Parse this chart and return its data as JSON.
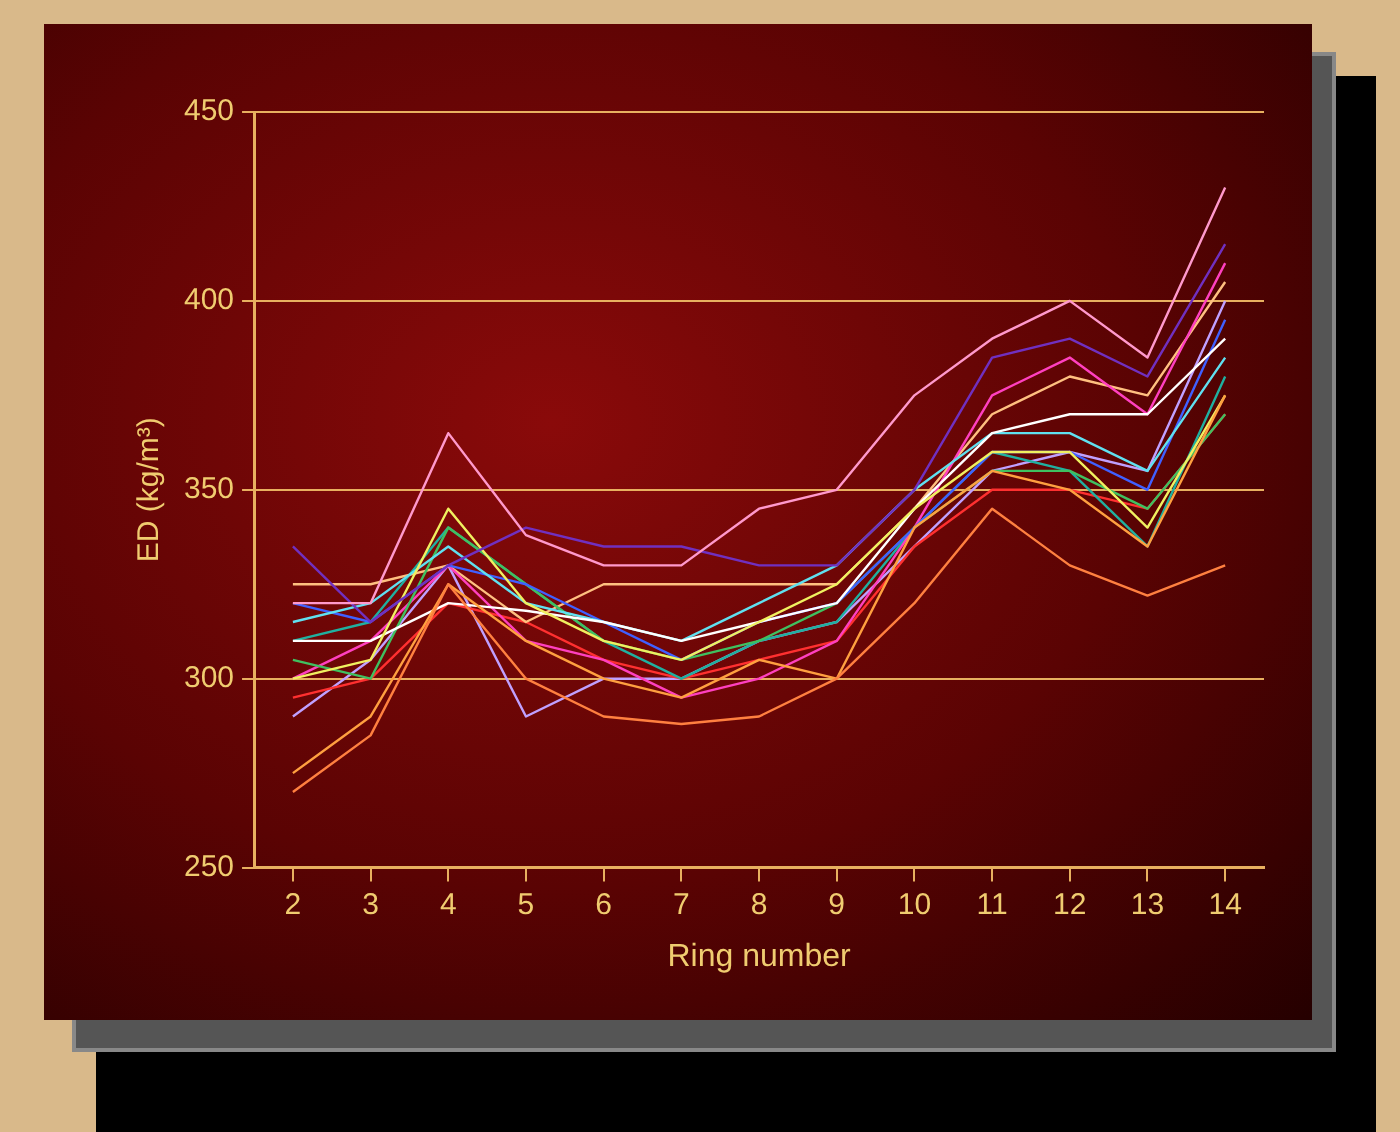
{
  "chart_data": {
    "type": "line",
    "xlabel": "Ring number",
    "ylabel": "ED (kg/m³)",
    "categories": [
      "2",
      "3",
      "4",
      "5",
      "6",
      "7",
      "8",
      "9",
      "10",
      "11",
      "12",
      "13",
      "14"
    ],
    "ylim": [
      250,
      450
    ],
    "yticks": [
      250,
      300,
      350,
      400,
      450
    ],
    "grid": "y",
    "legend": false,
    "marker": "none",
    "line_style": "solid",
    "series": [
      {
        "color": "#ff99cc",
        "values": [
          320,
          320,
          365,
          338,
          330,
          330,
          345,
          350,
          375,
          390,
          400,
          385,
          430
        ]
      },
      {
        "color": "#7030c0",
        "values": [
          335,
          315,
          330,
          340,
          335,
          335,
          330,
          330,
          350,
          385,
          390,
          380,
          415
        ]
      },
      {
        "color": "#ff8040",
        "values": [
          270,
          285,
          325,
          300,
          290,
          288,
          290,
          300,
          320,
          345,
          330,
          322,
          330
        ]
      },
      {
        "color": "#ffa040",
        "values": [
          275,
          290,
          325,
          310,
          300,
          295,
          305,
          300,
          340,
          355,
          350,
          335,
          375
        ]
      },
      {
        "color": "#f0f060",
        "values": [
          300,
          305,
          345,
          320,
          310,
          305,
          315,
          325,
          345,
          360,
          360,
          340,
          375
        ]
      },
      {
        "color": "#ffffff",
        "values": [
          310,
          310,
          320,
          318,
          315,
          310,
          315,
          320,
          345,
          365,
          370,
          370,
          390
        ]
      },
      {
        "color": "#60e0f0",
        "values": [
          315,
          320,
          335,
          320,
          315,
          310,
          320,
          330,
          350,
          365,
          365,
          355,
          385
        ]
      },
      {
        "color": "#4060ff",
        "values": [
          320,
          315,
          330,
          325,
          315,
          305,
          315,
          320,
          340,
          360,
          360,
          350,
          395
        ]
      },
      {
        "color": "#40c060",
        "values": [
          305,
          300,
          340,
          325,
          310,
          305,
          310,
          320,
          340,
          355,
          355,
          345,
          370
        ]
      },
      {
        "color": "#ff40c0",
        "values": [
          300,
          310,
          330,
          310,
          305,
          295,
          300,
          310,
          340,
          375,
          385,
          370,
          410
        ]
      },
      {
        "color": "#ffc080",
        "values": [
          325,
          325,
          330,
          315,
          325,
          325,
          325,
          325,
          345,
          370,
          380,
          375,
          405
        ]
      },
      {
        "color": "#20b0a0",
        "values": [
          310,
          315,
          340,
          325,
          310,
          300,
          310,
          315,
          340,
          360,
          355,
          335,
          380
        ]
      },
      {
        "color": "#ff3030",
        "values": [
          295,
          300,
          320,
          315,
          305,
          300,
          305,
          310,
          335,
          350,
          350,
          345,
          370
        ]
      },
      {
        "color": "#c0a0ff",
        "values": [
          290,
          305,
          330,
          290,
          300,
          300,
          310,
          315,
          335,
          355,
          360,
          355,
          400
        ]
      }
    ]
  }
}
